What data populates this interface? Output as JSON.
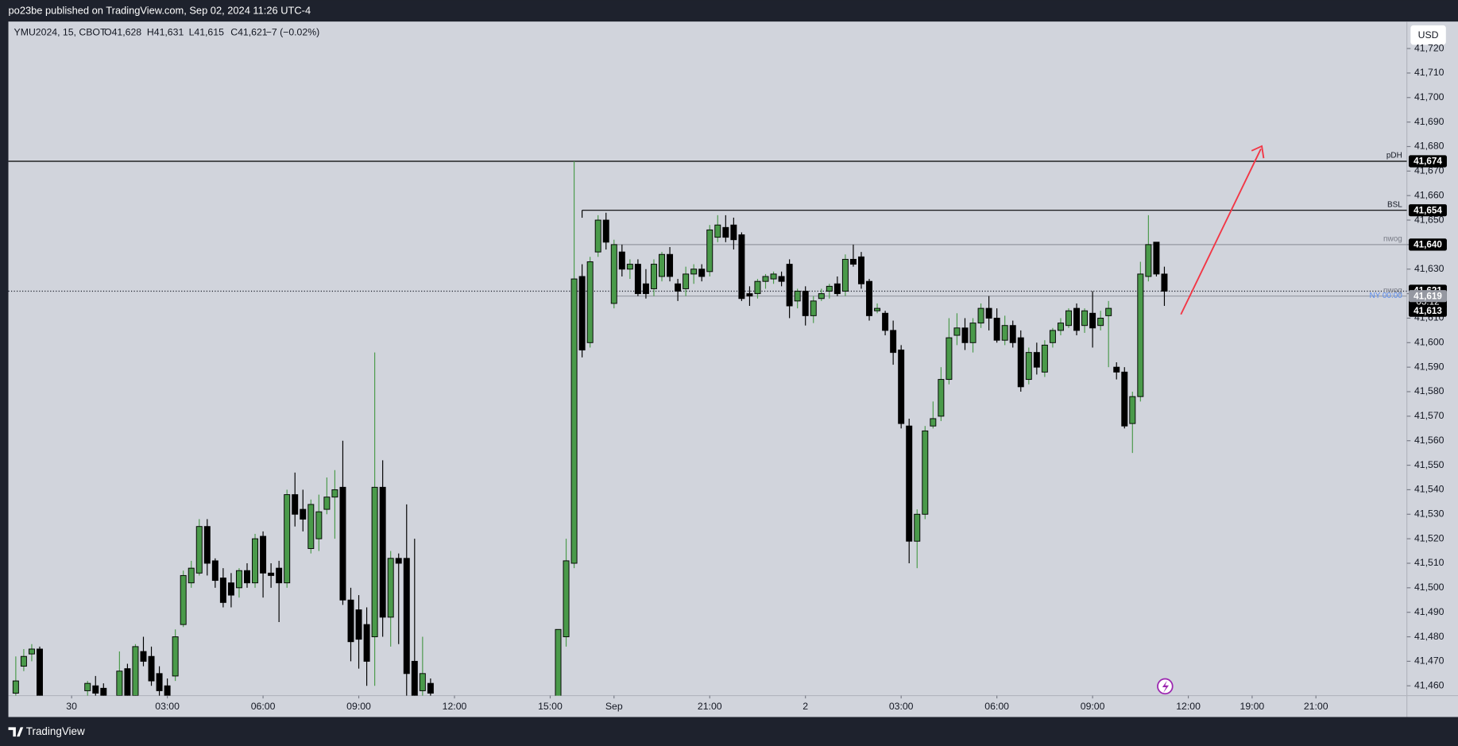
{
  "header": "po23be published on TradingView.com, Sep 02, 2024 11:26 UTC-4",
  "footer": "TradingView",
  "chart_data": {
    "type": "candlestick",
    "symbol": "YMU2024, 15, CBOT",
    "ohlc_text": [
      "O41,628",
      "H41,631",
      "L41,615",
      "C41,621"
    ],
    "change_text": "−7 (−0.02%)",
    "currency": "USD",
    "up_color": "#4a9a4a",
    "down_color": "#000000",
    "grid": false,
    "xlim": [
      -0.93,
      174.4
    ],
    "xticks": [
      {
        "value": 7,
        "label": "30"
      },
      {
        "value": 19,
        "label": "03:00"
      },
      {
        "value": 31,
        "label": "06:00"
      },
      {
        "value": 43,
        "label": "09:00"
      },
      {
        "value": 55,
        "label": "12:00"
      },
      {
        "value": 67,
        "label": "15:00"
      },
      {
        "value": 75,
        "label": "Sep"
      },
      {
        "value": 87,
        "label": "21:00"
      },
      {
        "value": 99,
        "label": "2"
      },
      {
        "value": 111,
        "label": "03:00"
      },
      {
        "value": 123,
        "label": "06:00"
      },
      {
        "value": 135,
        "label": "09:00"
      },
      {
        "value": 147,
        "label": "12:00"
      },
      {
        "value": 155,
        "label": "19:00"
      },
      {
        "value": 163,
        "label": "21:00"
      }
    ],
    "ylim": [
      41456,
      41731
    ],
    "yticks": [
      {
        "value": 41460,
        "label": "41,460"
      },
      {
        "value": 41470,
        "label": "41,470"
      },
      {
        "value": 41480,
        "label": "41,480"
      },
      {
        "value": 41490,
        "label": "41,490"
      },
      {
        "value": 41500,
        "label": "41,500"
      },
      {
        "value": 41510,
        "label": "41,510"
      },
      {
        "value": 41520,
        "label": "41,520"
      },
      {
        "value": 41530,
        "label": "41,530"
      },
      {
        "value": 41540,
        "label": "41,540"
      },
      {
        "value": 41550,
        "label": "41,550"
      },
      {
        "value": 41560,
        "label": "41,560"
      },
      {
        "value": 41570,
        "label": "41,570"
      },
      {
        "value": 41580,
        "label": "41,580"
      },
      {
        "value": 41590,
        "label": "41,590"
      },
      {
        "value": 41600,
        "label": "41,600"
      },
      {
        "value": 41610,
        "label": "41,610"
      },
      {
        "value": 41620,
        "label": "41,620"
      },
      {
        "value": 41630,
        "label": "41,630"
      },
      {
        "value": 41640,
        "label": "41,640"
      },
      {
        "value": 41650,
        "label": "41,650"
      },
      {
        "value": 41660,
        "label": "41,660"
      },
      {
        "value": 41670,
        "label": "41,670"
      },
      {
        "value": 41680,
        "label": "41,680"
      },
      {
        "value": 41690,
        "label": "41,690"
      },
      {
        "value": 41700,
        "label": "41,700"
      },
      {
        "value": 41710,
        "label": "41,710"
      },
      {
        "value": 41720,
        "label": "41,720"
      }
    ],
    "open": [
      41457,
      41468,
      41473,
      41475,
      null,
      null,
      null,
      null,
      null,
      41458,
      41460,
      41459,
      null,
      41456,
      41467,
      41456,
      41474,
      41472,
      41465,
      41460,
      41464,
      41485,
      41502,
      41506,
      41525,
      41511,
      41504,
      41502,
      41500,
      41507,
      41502,
      41521,
      41506,
      41508,
      41502,
      41538,
      41532,
      41516,
      41520,
      41532,
      41537,
      41541,
      41495,
      41491,
      41485,
      41480,
      41541,
      41488,
      41512,
      41512,
      41470,
      41458,
      41461,
      null,
      null,
      null,
      null,
      null,
      null,
      null,
      null,
      null,
      null,
      null,
      null,
      null,
      null,
      null,
      41455,
      41480,
      41510,
      41627,
      41600,
      41637,
      41650,
      41616,
      41637,
      41630,
      41632,
      41624,
      41622,
      41627,
      41636,
      41624,
      41622,
      41628,
      41630,
      41629,
      41643,
      41647,
      41648,
      41644,
      41620,
      41620,
      41625,
      41626,
      41627,
      41632,
      41617,
      41621,
      41611,
      41618,
      41621,
      41624,
      41621,
      41634,
      41635,
      41625,
      41613,
      41612,
      41605,
      41597,
      41566,
      41519,
      41530,
      41566,
      41570,
      41585,
      41603,
      41606,
      41600,
      41608,
      41614,
      41610,
      41601,
      41607,
      41602,
      41585,
      41596,
      41588,
      41600,
      41605,
      41607,
      41614,
      41607,
      41612,
      41607,
      41611,
      41590,
      41588,
      41567,
      41578,
      41627,
      41641,
      41628
    ],
    "high": [
      41472,
      41475,
      41477,
      41476,
      null,
      null,
      null,
      null,
      null,
      41462,
      41464,
      41461,
      null,
      41474,
      41469,
      41477,
      41480,
      41476,
      41468,
      41463,
      41483,
      41507,
      41511,
      41528,
      41528,
      41512,
      41508,
      41506,
      41508,
      41510,
      41522,
      41523,
      41510,
      41511,
      41540,
      41547,
      41540,
      41536,
      41538,
      41545,
      41548,
      41560,
      41500,
      41497,
      41492,
      41596,
      41552,
      41515,
      41514,
      41534,
      41520,
      41480,
      41463,
      null,
      null,
      null,
      null,
      null,
      null,
      null,
      null,
      null,
      null,
      null,
      null,
      null,
      null,
      null,
      41483,
      41520,
      41674,
      41632,
      41635,
      41652,
      41653,
      41642,
      41640,
      41634,
      41634,
      41630,
      41634,
      41637,
      41639,
      41626,
      41631,
      41632,
      41632,
      41648,
      41652,
      41652,
      41651,
      41645,
      41623,
      41626,
      41628,
      41629,
      41629,
      41634,
      41622,
      41623,
      41619,
      41622,
      41624,
      41627,
      41636,
      41640,
      41637,
      41626,
      41616,
      41613,
      41609,
      41599,
      41569,
      41532,
      41566,
      41576,
      41590,
      41610,
      41612,
      41610,
      41610,
      41616,
      41619,
      41614,
      41611,
      41609,
      41605,
      41598,
      41600,
      41601,
      41606,
      41610,
      41614,
      41616,
      41614,
      41621,
      41613,
      41617,
      41592,
      41590,
      41580,
      41633,
      41652,
      41641,
      41631
    ],
    "low": [
      41455,
      41466,
      41470,
      41450,
      null,
      null,
      null,
      null,
      null,
      41455,
      41455,
      41455,
      null,
      41455,
      41455,
      41455,
      41468,
      41460,
      41455,
      41455,
      41462,
      41484,
      41500,
      41505,
      41505,
      41500,
      41492,
      41492,
      41496,
      41500,
      41500,
      41496,
      41500,
      41486,
      41500,
      41525,
      41523,
      41514,
      41515,
      41530,
      41520,
      41493,
      41470,
      41467,
      41460,
      41460,
      41480,
      41476,
      41477,
      41455,
      41450,
      41455,
      41450,
      null,
      null,
      null,
      null,
      null,
      null,
      null,
      null,
      null,
      null,
      null,
      null,
      null,
      null,
      null,
      41450,
      41476,
      41508,
      41594,
      41598,
      41635,
      41638,
      41614,
      41627,
      41626,
      41619,
      41618,
      41619,
      41625,
      41625,
      41617,
      41619,
      41624,
      41625,
      41627,
      41641,
      41641,
      41638,
      41617,
      41615,
      41618,
      41622,
      41624,
      41623,
      41610,
      41614,
      41607,
      41608,
      41617,
      41618,
      41619,
      41619,
      41631,
      41622,
      41609,
      41612,
      41603,
      41591,
      41565,
      41510,
      41508,
      41528,
      41565,
      41568,
      41583,
      41599,
      41597,
      41596,
      41606,
      41605,
      41600,
      41599,
      41598,
      41580,
      41583,
      41587,
      41586,
      41598,
      41603,
      41606,
      41603,
      41604,
      41598,
      41605,
      41590,
      41585,
      41565,
      41555,
      41576,
      41625,
      41627,
      41615
    ],
    "close": [
      41462,
      41472,
      41475,
      41455,
      null,
      null,
      null,
      null,
      null,
      41461,
      41457,
      41456,
      null,
      41466,
      41456,
      41476,
      41470,
      41462,
      41458,
      41455,
      41480,
      41505,
      41508,
      41525,
      41510,
      41503,
      41494,
      41497,
      41507,
      41502,
      41520,
      41506,
      41505,
      41502,
      41538,
      41530,
      41528,
      41534,
      41531,
      41537,
      41540,
      41495,
      41478,
      41479,
      41470,
      41541,
      41488,
      41512,
      41510,
      41465,
      41455,
      41465,
      41457,
      null,
      null,
      null,
      null,
      null,
      null,
      null,
      null,
      null,
      null,
      null,
      null,
      null,
      null,
      null,
      41483,
      41511,
      41626,
      41597,
      41633,
      41650,
      41641,
      41640,
      41630,
      41632,
      41620,
      41620,
      41632,
      41636,
      41627,
      41621,
      41628,
      41630,
      41627,
      41646,
      41648,
      41643,
      41642,
      41618,
      41619,
      41625,
      41627,
      41628,
      41625,
      41615,
      41621,
      41611,
      41617,
      41620,
      41623,
      41620,
      41634,
      41632,
      41624,
      41611,
      41614,
      41605,
      41596,
      41567,
      41519,
      41530,
      41564,
      41569,
      41585,
      41602,
      41606,
      41600,
      41608,
      41614,
      41610,
      41601,
      41607,
      41600,
      41582,
      41596,
      41590,
      41599,
      41605,
      41608,
      41613,
      41605,
      41613,
      41606,
      41610,
      41614,
      41588,
      41566,
      41578,
      41628,
      41640,
      41628,
      41621
    ],
    "levels": [
      {
        "name": "pDH",
        "value": 41674,
        "label": "41,674"
      },
      {
        "name": "BSL",
        "value": 41654,
        "label": "41,654"
      },
      {
        "name": "nwog",
        "value": 41640,
        "label": "41,640"
      },
      {
        "name": "nwog",
        "value": 41619,
        "label": "41,619"
      }
    ],
    "last_price": {
      "value": 41621,
      "label": "41,621",
      "countdown": "03:12"
    },
    "session_label": "NY 00:00",
    "price_marks": [
      {
        "value": 41613,
        "label": "41,613"
      }
    ]
  }
}
